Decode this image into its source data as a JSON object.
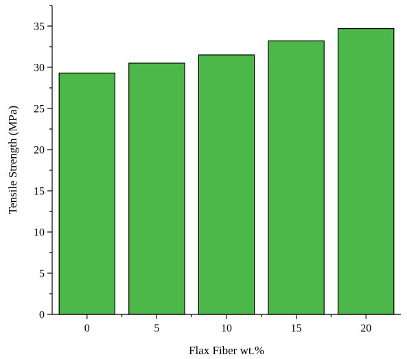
{
  "chart_data": {
    "type": "bar",
    "categories": [
      "0",
      "5",
      "10",
      "15",
      "20"
    ],
    "values": [
      29.3,
      30.5,
      31.5,
      33.2,
      34.7
    ],
    "title": "",
    "xlabel": "Flax Fiber wt.%",
    "ylabel": "Tensile Strength (MPa)",
    "ylim": [
      0,
      37.5
    ],
    "y_ticks": [
      "0",
      "5",
      "10",
      "15",
      "20",
      "25",
      "30",
      "35"
    ],
    "grid": false,
    "bar_color": "#4cb84a",
    "axis_color": "#000000"
  }
}
